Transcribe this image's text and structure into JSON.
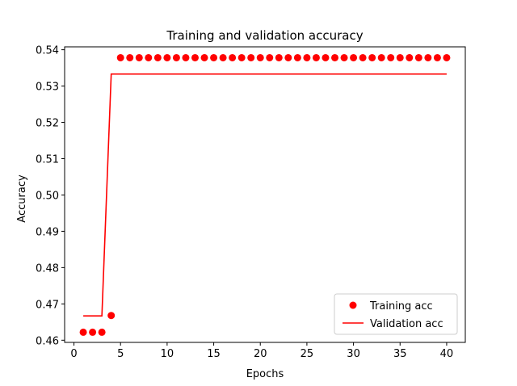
{
  "chart_data": {
    "type": "line",
    "title": "Training and validation accuracy",
    "xlabel": "Epochs",
    "ylabel": "Accuracy",
    "xlim": [
      -1,
      42
    ],
    "ylim": [
      0.4594,
      0.5408
    ],
    "xticks": [
      0,
      5,
      10,
      15,
      20,
      25,
      30,
      35,
      40
    ],
    "yticks": [
      0.46,
      0.47,
      0.48,
      0.49,
      0.5,
      0.51,
      0.52,
      0.53,
      0.54
    ],
    "ytick_labels": [
      "0.46",
      "0.47",
      "0.48",
      "0.49",
      "0.50",
      "0.51",
      "0.52",
      "0.53",
      "0.54"
    ],
    "grid": false,
    "legend_position": "lower-right",
    "series": [
      {
        "name": "Training acc",
        "style": "markers",
        "color": "#ff0000",
        "x": [
          1,
          2,
          3,
          4,
          5,
          6,
          7,
          8,
          9,
          10,
          11,
          12,
          13,
          14,
          15,
          16,
          17,
          18,
          19,
          20,
          21,
          22,
          23,
          24,
          25,
          26,
          27,
          28,
          29,
          30,
          31,
          32,
          33,
          34,
          35,
          36,
          37,
          38,
          39,
          40
        ],
        "values": [
          0.4622,
          0.4622,
          0.4622,
          0.4668,
          0.5378,
          0.5378,
          0.5378,
          0.5378,
          0.5378,
          0.5378,
          0.5378,
          0.5378,
          0.5378,
          0.5378,
          0.5378,
          0.5378,
          0.5378,
          0.5378,
          0.5378,
          0.5378,
          0.5378,
          0.5378,
          0.5378,
          0.5378,
          0.5378,
          0.5378,
          0.5378,
          0.5378,
          0.5378,
          0.5378,
          0.5378,
          0.5378,
          0.5378,
          0.5378,
          0.5378,
          0.5378,
          0.5378,
          0.5378,
          0.5378,
          0.5378
        ]
      },
      {
        "name": "Validation acc",
        "style": "line",
        "color": "#ff0000",
        "x": [
          1,
          2,
          3,
          4,
          5,
          6,
          7,
          8,
          9,
          10,
          11,
          12,
          13,
          14,
          15,
          16,
          17,
          18,
          19,
          20,
          21,
          22,
          23,
          24,
          25,
          26,
          27,
          28,
          29,
          30,
          31,
          32,
          33,
          34,
          35,
          36,
          37,
          38,
          39,
          40
        ],
        "values": [
          0.4667,
          0.4667,
          0.4667,
          0.5333,
          0.5333,
          0.5333,
          0.5333,
          0.5333,
          0.5333,
          0.5333,
          0.5333,
          0.5333,
          0.5333,
          0.5333,
          0.5333,
          0.5333,
          0.5333,
          0.5333,
          0.5333,
          0.5333,
          0.5333,
          0.5333,
          0.5333,
          0.5333,
          0.5333,
          0.5333,
          0.5333,
          0.5333,
          0.5333,
          0.5333,
          0.5333,
          0.5333,
          0.5333,
          0.5333,
          0.5333,
          0.5333,
          0.5333,
          0.5333,
          0.5333,
          0.5333
        ]
      }
    ]
  }
}
